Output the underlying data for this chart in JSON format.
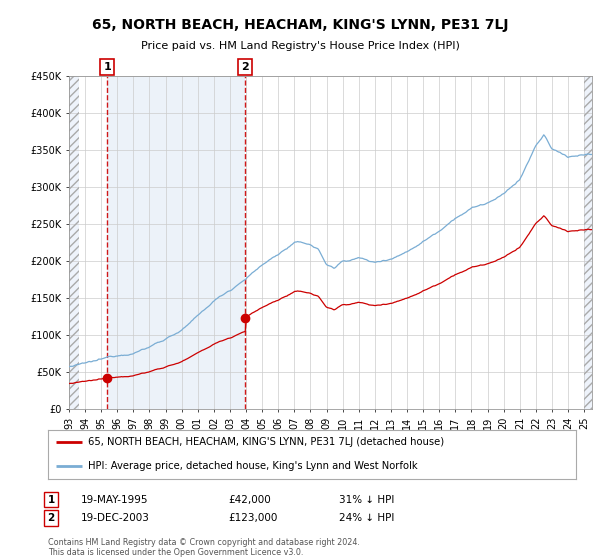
{
  "title": "65, NORTH BEACH, HEACHAM, KING'S LYNN, PE31 7LJ",
  "subtitle": "Price paid vs. HM Land Registry's House Price Index (HPI)",
  "footer": "Contains HM Land Registry data © Crown copyright and database right 2024.\nThis data is licensed under the Open Government Licence v3.0.",
  "legend_line1": "65, NORTH BEACH, HEACHAM, KING'S LYNN, PE31 7LJ (detached house)",
  "legend_line2": "HPI: Average price, detached house, King's Lynn and West Norfolk",
  "sale1_date": "19-MAY-1995",
  "sale1_price": 42000,
  "sale1_label": "31% ↓ HPI",
  "sale1_x": 1995.38,
  "sale2_date": "19-DEC-2003",
  "sale2_price": 123000,
  "sale2_label": "24% ↓ HPI",
  "sale2_x": 2003.96,
  "ylim": [
    0,
    450000
  ],
  "xlim_start": 1993.0,
  "xlim_end": 2025.5,
  "hatch_bg": "#eef3fb",
  "shade_bg": "#dde8f5",
  "grid_color": "#cccccc",
  "red_line_color": "#cc0000",
  "blue_line_color": "#7aadd4",
  "dashed_line_color": "#cc0000",
  "background_color": "#ffffff",
  "hpi_anchors_x": [
    1993,
    1994,
    1995,
    1996,
    1997,
    1998,
    1999,
    2000,
    2001,
    2002,
    2003,
    2004,
    2005,
    2006,
    2007,
    2008,
    2008.5,
    2009,
    2009.5,
    2010,
    2011,
    2012,
    2013,
    2014,
    2015,
    2016,
    2017,
    2018,
    2019,
    2020,
    2021,
    2022,
    2022.5,
    2023,
    2024,
    2025
  ],
  "hpi_anchors_y": [
    57000,
    60000,
    64000,
    70000,
    76000,
    84000,
    96000,
    108000,
    125000,
    145000,
    160000,
    178000,
    195000,
    210000,
    225000,
    222000,
    215000,
    195000,
    190000,
    200000,
    205000,
    198000,
    205000,
    215000,
    230000,
    245000,
    265000,
    278000,
    285000,
    295000,
    315000,
    360000,
    375000,
    355000,
    345000,
    348000
  ]
}
